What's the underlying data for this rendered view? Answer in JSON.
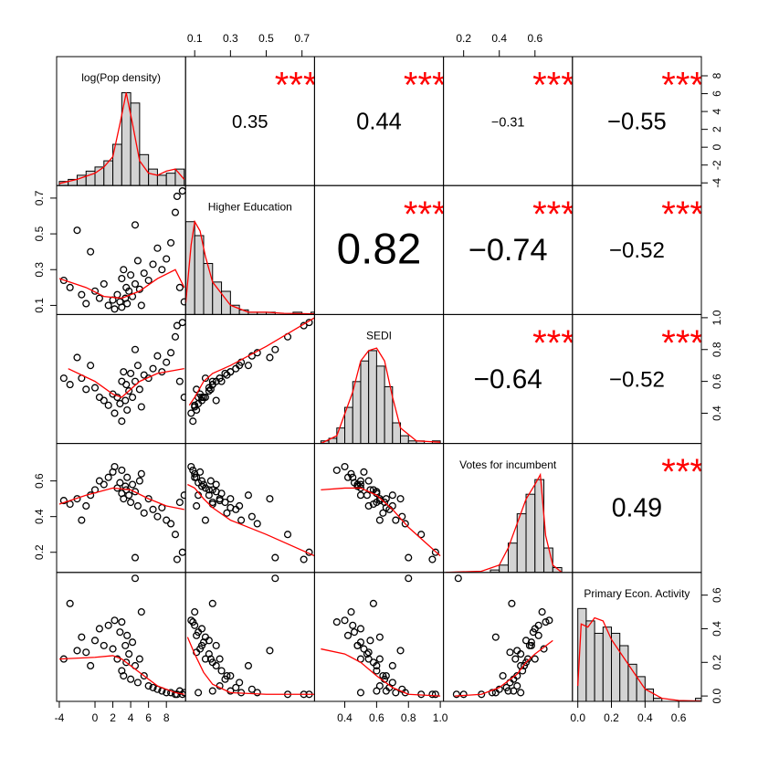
{
  "chart_data": {
    "type": "scatter-matrix",
    "variables": [
      {
        "name": "log(Pop density)",
        "lim": [
          -4.3,
          10.15
        ],
        "col_ticks": [
          -4,
          0,
          2,
          4,
          6,
          8
        ],
        "row_ticks": [
          -4,
          -2,
          0,
          2,
          4,
          6,
          8
        ],
        "bins": [
          -4,
          -3,
          -2,
          -1,
          0,
          1,
          2,
          3,
          4,
          5,
          6,
          7,
          8,
          9,
          10
        ],
        "counts": [
          2,
          3,
          5,
          7,
          9,
          12,
          20,
          45,
          40,
          15,
          8,
          5,
          6,
          8
        ],
        "density_x": [
          -4,
          -2,
          0,
          1,
          2,
          2.8,
          3.5,
          4.2,
          5,
          6,
          7,
          8,
          9,
          10
        ],
        "density_y": [
          1,
          3,
          6,
          9,
          14,
          30,
          45,
          30,
          12,
          6,
          5,
          7,
          8,
          3
        ]
      },
      {
        "name": "Higher Education",
        "lim": [
          0.049,
          0.77
        ],
        "col_ticks": [
          0.1,
          0.3,
          0.5,
          0.7
        ],
        "row_ticks": [
          0.1,
          0.3,
          0.5,
          0.7
        ],
        "bins": [
          0.05,
          0.1,
          0.15,
          0.2,
          0.25,
          0.3,
          0.35,
          0.4,
          0.45,
          0.5,
          0.55,
          0.6,
          0.65,
          0.7,
          0.75,
          0.8
        ],
        "counts": [
          40,
          34,
          22,
          14,
          10,
          4,
          2,
          1,
          1,
          1,
          0,
          0,
          1,
          0,
          1
        ],
        "density_x": [
          0.05,
          0.08,
          0.1,
          0.13,
          0.16,
          0.2,
          0.3,
          0.4,
          0.5,
          0.6,
          0.77
        ],
        "density_y": [
          5,
          30,
          40,
          36,
          25,
          14,
          4,
          1,
          1,
          0.5,
          0.3
        ]
      },
      {
        "name": "SEDI",
        "lim": [
          0.21,
          1.02
        ],
        "col_ticks": [
          0.4,
          0.6,
          0.8,
          {
            "value": 1,
            "label": "1.0"
          }
        ],
        "row_ticks": [
          0.4,
          0.6,
          0.8,
          {
            "value": 1,
            "label": "1.0"
          }
        ],
        "bins": [
          0.25,
          0.3,
          0.35,
          0.4,
          0.45,
          0.5,
          0.55,
          0.6,
          0.65,
          0.7,
          0.75,
          0.8,
          0.85,
          0.9,
          0.95,
          1.0
        ],
        "counts": [
          1,
          2,
          6,
          14,
          24,
          32,
          36,
          30,
          22,
          8,
          3,
          1,
          1,
          0,
          1
        ],
        "density_x": [
          0.25,
          0.35,
          0.45,
          0.5,
          0.55,
          0.6,
          0.65,
          0.7,
          0.75,
          0.85,
          1.0
        ],
        "density_y": [
          0,
          3,
          20,
          32,
          36,
          37,
          32,
          18,
          6,
          1,
          0.5
        ]
      },
      {
        "name": "Votes for incumbent",
        "lim": [
          0.087,
          0.81
        ],
        "col_ticks": [
          0.2,
          0.4,
          0.6
        ],
        "row_ticks": [
          0.2,
          0.4,
          0.6
        ],
        "bins": [
          0.1,
          0.15,
          0.2,
          0.25,
          0.3,
          0.35,
          0.4,
          0.45,
          0.5,
          0.55,
          0.6,
          0.65,
          0.7,
          0.75
        ],
        "counts": [
          0,
          0,
          0,
          0,
          0,
          1,
          3,
          12,
          24,
          32,
          38,
          10,
          2
        ],
        "density_x": [
          0.1,
          0.3,
          0.4,
          0.45,
          0.5,
          0.55,
          0.6,
          0.63,
          0.66,
          0.7,
          0.75
        ],
        "density_y": [
          0,
          0.5,
          3,
          10,
          20,
          30,
          36,
          40,
          15,
          3,
          0
        ]
      },
      {
        "name": "Primary Econ. Activity",
        "lim": [
          -0.032,
          0.735
        ],
        "col_ticks": [
          {
            "value": 0,
            "label": "0.0"
          },
          0.2,
          0.4,
          0.6
        ],
        "row_ticks": [
          {
            "value": 0,
            "label": "0.0"
          },
          0.2,
          0.4,
          0.6
        ],
        "bins": [
          0,
          0.05,
          0.1,
          0.15,
          0.2,
          0.25,
          0.3,
          0.35,
          0.4,
          0.45,
          0.5,
          0.55,
          0.6,
          0.65,
          0.7,
          0.75
        ],
        "counts": [
          30,
          26,
          22,
          24,
          22,
          18,
          12,
          8,
          4,
          1,
          0,
          0,
          0,
          0,
          1
        ],
        "density_x": [
          0,
          0.02,
          0.06,
          0.1,
          0.15,
          0.2,
          0.3,
          0.4,
          0.5,
          0.6,
          0.73
        ],
        "density_y": [
          5,
          25,
          24,
          27,
          26,
          20,
          12,
          4,
          1,
          0.3,
          0.1
        ]
      }
    ],
    "observations": [
      [
        -3.5,
        0.24,
        0.62,
        0.49,
        0.22
      ],
      [
        -2.8,
        0.2,
        0.58,
        0.47,
        0.55
      ],
      [
        -2.0,
        0.52,
        0.75,
        0.5,
        0.27
      ],
      [
        -1.5,
        0.16,
        0.62,
        0.38,
        0.35
      ],
      [
        -1.0,
        0.11,
        0.55,
        0.46,
        0.26
      ],
      [
        -0.5,
        0.4,
        0.7,
        0.52,
        0.18
      ],
      [
        0.0,
        0.18,
        0.56,
        0.55,
        0.33
      ],
      [
        0.5,
        0.14,
        0.5,
        0.6,
        0.4
      ],
      [
        1.0,
        0.22,
        0.48,
        0.58,
        0.3
      ],
      [
        1.5,
        0.1,
        0.45,
        0.62,
        0.42
      ],
      [
        2.0,
        0.13,
        0.52,
        0.65,
        0.28
      ],
      [
        2.2,
        0.08,
        0.4,
        0.68,
        0.45
      ],
      [
        2.5,
        0.16,
        0.5,
        0.56,
        0.22
      ],
      [
        2.8,
        0.12,
        0.46,
        0.59,
        0.38
      ],
      [
        3.0,
        0.25,
        0.6,
        0.53,
        0.15
      ],
      [
        3.0,
        0.09,
        0.35,
        0.66,
        0.44
      ],
      [
        3.2,
        0.3,
        0.66,
        0.5,
        0.12
      ],
      [
        3.4,
        0.14,
        0.48,
        0.57,
        0.3
      ],
      [
        3.5,
        0.2,
        0.58,
        0.55,
        0.2
      ],
      [
        3.6,
        0.11,
        0.42,
        0.62,
        0.36
      ],
      [
        3.8,
        0.18,
        0.54,
        0.52,
        0.25
      ],
      [
        4.0,
        0.27,
        0.65,
        0.48,
        0.1
      ],
      [
        4.2,
        0.15,
        0.5,
        0.58,
        0.32
      ],
      [
        4.5,
        0.22,
        0.6,
        0.54,
        0.18
      ],
      [
        4.8,
        0.35,
        0.7,
        0.46,
        0.08
      ],
      [
        5.0,
        0.19,
        0.55,
        0.6,
        0.22
      ],
      [
        5.5,
        0.28,
        0.64,
        0.42,
        0.12
      ],
      [
        6.0,
        0.24,
        0.62,
        0.5,
        0.06
      ],
      [
        6.5,
        0.33,
        0.68,
        0.44,
        0.05
      ],
      [
        7.0,
        0.42,
        0.76,
        0.4,
        0.04
      ],
      [
        7.5,
        0.3,
        0.66,
        0.45,
        0.03
      ],
      [
        8.0,
        0.36,
        0.72,
        0.38,
        0.02
      ],
      [
        8.5,
        0.45,
        0.78,
        0.36,
        0.02
      ],
      [
        9.0,
        0.62,
        0.88,
        0.3,
        0.01
      ],
      [
        9.2,
        0.71,
        0.95,
        0.16,
        0.01
      ],
      [
        9.5,
        0.2,
        0.6,
        0.48,
        0.03
      ],
      [
        9.8,
        0.74,
        0.97,
        0.2,
        0.01
      ],
      [
        10.0,
        0.12,
        0.5,
        0.52,
        0.02
      ],
      [
        4.5,
        0.55,
        0.8,
        0.17,
        0.7
      ],
      [
        5.2,
        0.1,
        0.44,
        0.64,
        0.5
      ]
    ],
    "correlations": [
      [
        null,
        0.35,
        0.44,
        -0.31,
        -0.55
      ],
      [
        null,
        null,
        0.82,
        -0.74,
        -0.52
      ],
      [
        null,
        null,
        null,
        -0.64,
        -0.52
      ],
      [
        null,
        null,
        null,
        null,
        0.49
      ],
      [
        null,
        null,
        null,
        null,
        null
      ]
    ],
    "correlation_labels": [
      [
        null,
        "0.35",
        "0.44",
        "−0.31",
        "−0.55"
      ],
      [
        null,
        null,
        "0.82",
        "−0.74",
        "−0.52"
      ],
      [
        null,
        null,
        null,
        "−0.64",
        "−0.52"
      ],
      [
        null,
        null,
        null,
        null,
        "0.49"
      ],
      [
        null,
        null,
        null,
        null,
        null
      ]
    ],
    "stars": [
      [
        null,
        "***",
        "***",
        "***",
        "***"
      ],
      [
        null,
        null,
        "***",
        "***",
        "***"
      ],
      [
        null,
        null,
        null,
        "***",
        "***"
      ],
      [
        null,
        null,
        null,
        null,
        "***"
      ],
      [
        null,
        null,
        null,
        null,
        null
      ]
    ],
    "star_color": "#ff0000",
    "smooth_color": "#ff0000",
    "hist_color": "#d3d3d3",
    "smooth": [
      [
        null,
        null,
        null,
        null,
        null
      ],
      [
        {
          "x": [
            -4,
            -1,
            1,
            3,
            5,
            7,
            9,
            10
          ],
          "y": [
            0.25,
            0.2,
            0.15,
            0.14,
            0.18,
            0.25,
            0.3,
            0.2
          ]
        },
        null,
        null,
        null,
        null
      ],
      [
        {
          "x": [
            -3,
            0,
            2,
            3,
            5,
            7,
            10
          ],
          "y": [
            0.68,
            0.6,
            0.52,
            0.5,
            0.6,
            0.65,
            0.68
          ]
        },
        {
          "x": [
            0.07,
            0.1,
            0.15,
            0.2,
            0.3,
            0.5,
            0.77
          ],
          "y": [
            0.45,
            0.5,
            0.6,
            0.65,
            0.7,
            0.82,
            1.0
          ]
        },
        null,
        null,
        null
      ],
      [
        {
          "x": [
            -4,
            -1,
            2,
            4,
            6,
            8,
            10
          ],
          "y": [
            0.47,
            0.52,
            0.56,
            0.55,
            0.5,
            0.46,
            0.44
          ]
        },
        {
          "x": [
            0.06,
            0.1,
            0.15,
            0.2,
            0.3,
            0.5,
            0.77
          ],
          "y": [
            0.58,
            0.56,
            0.5,
            0.45,
            0.38,
            0.3,
            0.18
          ]
        },
        {
          "x": [
            0.25,
            0.4,
            0.5,
            0.6,
            0.7,
            0.8,
            1.0
          ],
          "y": [
            0.55,
            0.56,
            0.56,
            0.52,
            0.44,
            0.34,
            0.18
          ]
        },
        null,
        null
      ],
      [
        {
          "x": [
            -4,
            0,
            2,
            3,
            5,
            7,
            9,
            10
          ],
          "y": [
            0.22,
            0.23,
            0.24,
            0.22,
            0.14,
            0.06,
            0.02,
            0.01
          ]
        },
        {
          "x": [
            0.06,
            0.1,
            0.15,
            0.2,
            0.3,
            0.5,
            0.77
          ],
          "y": [
            0.35,
            0.25,
            0.14,
            0.07,
            0.02,
            0.01,
            0.01
          ]
        },
        {
          "x": [
            0.25,
            0.4,
            0.5,
            0.6,
            0.7,
            0.8,
            1.0
          ],
          "y": [
            0.28,
            0.25,
            0.2,
            0.12,
            0.05,
            0.01,
            0.0
          ]
        },
        {
          "x": [
            0.15,
            0.3,
            0.4,
            0.5,
            0.55,
            0.6,
            0.7
          ],
          "y": [
            0.0,
            0.01,
            0.05,
            0.13,
            0.2,
            0.25,
            0.33
          ]
        },
        null
      ]
    ]
  }
}
